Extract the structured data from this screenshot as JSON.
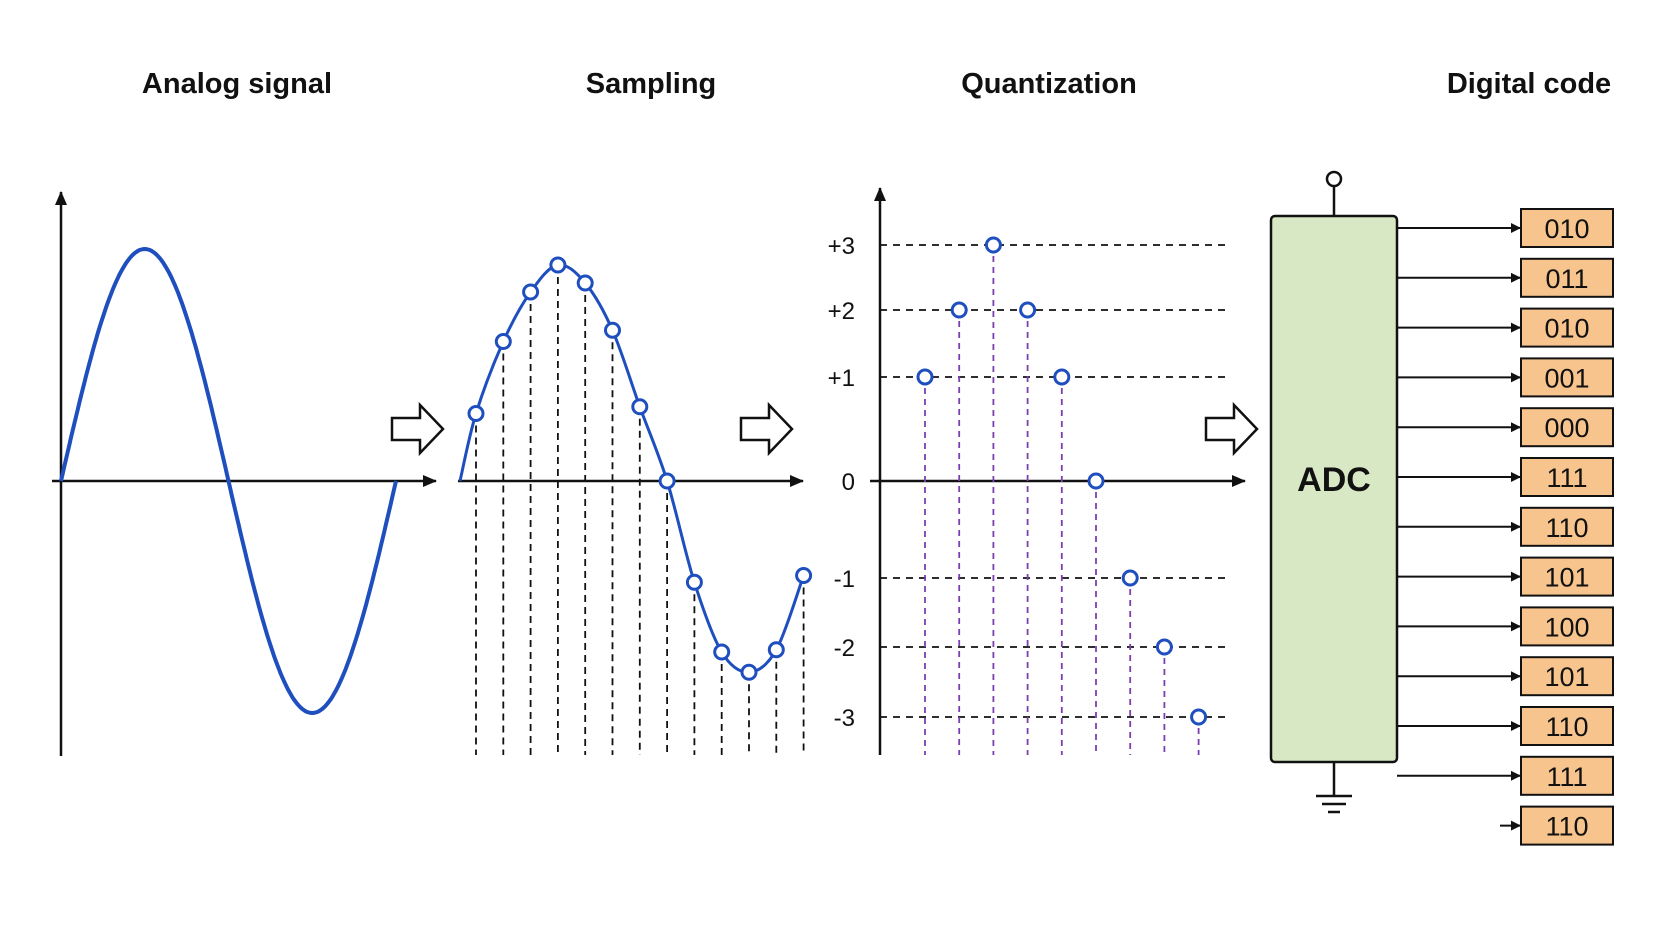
{
  "titles": {
    "analog": "Analog signal",
    "sampling": "Sampling",
    "quantization": "Quantization",
    "digital": "Digital code"
  },
  "quantization_levels": [
    {
      "label": "+3",
      "value": 3
    },
    {
      "label": "+2",
      "value": 2
    },
    {
      "label": "+1",
      "value": 1
    },
    {
      "label": "0",
      "value": 0
    },
    {
      "label": "-1",
      "value": -1
    },
    {
      "label": "-2",
      "value": -2
    },
    {
      "label": "-3",
      "value": -3
    }
  ],
  "sampling_samples": [
    0.3,
    0.62,
    0.84,
    0.96,
    0.88,
    0.67,
    0.33,
    0.0,
    -0.45,
    -0.76,
    -0.85,
    -0.75,
    -0.42
  ],
  "quantized_samples": [
    1,
    2,
    3,
    2,
    1,
    0,
    -1,
    -2,
    -3
  ],
  "adc_label": "ADC",
  "digital_codes": [
    "010",
    "011",
    "010",
    "001",
    "000",
    "111",
    "110",
    "101",
    "100",
    "101",
    "110",
    "111",
    "110"
  ],
  "colors": {
    "signal": "#1f4fbf",
    "sample_marker": "#1f4fbf",
    "quant_stem": "#7b3fb0",
    "adc_fill": "#d9e8c4",
    "code_fill": "#f6c48c",
    "line": "#111111"
  }
}
